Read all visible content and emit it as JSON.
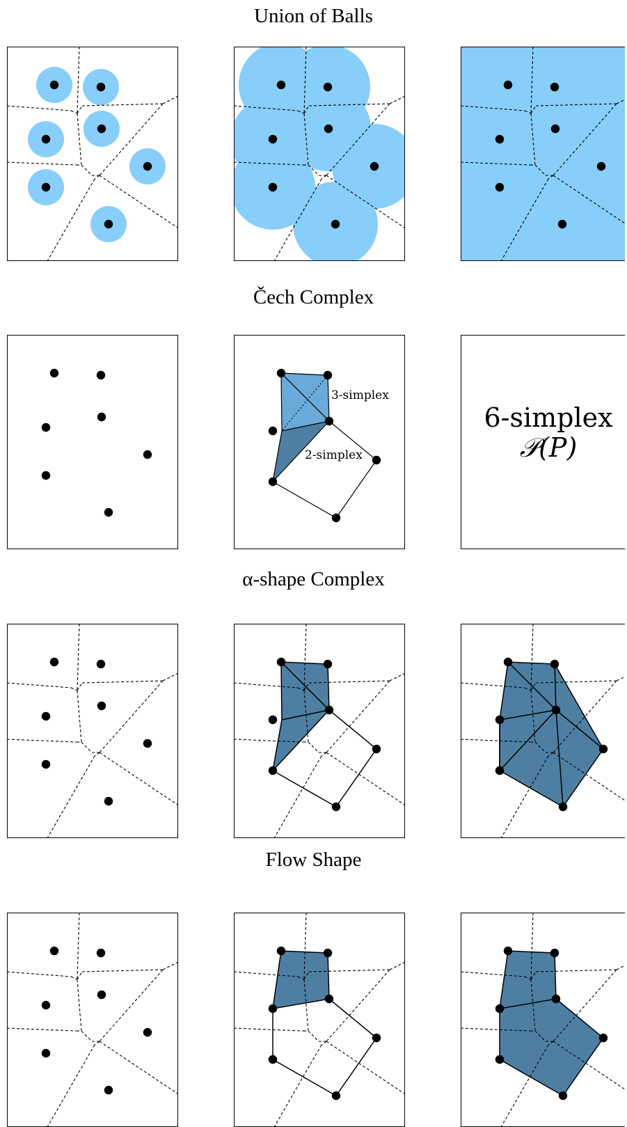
{
  "sections": [
    {
      "id": "union-of-balls",
      "title": "Union of Balls"
    },
    {
      "id": "cech-complex",
      "title": "Čech Complex"
    },
    {
      "id": "alpha-shape-complex",
      "title": "α-shape Complex"
    },
    {
      "id": "flow-shape",
      "title": "Flow Shape"
    }
  ],
  "annotations": {
    "three_simplex": "3-simplex",
    "two_simplex": "2-simplex",
    "six_simplex": "6-simplex",
    "power_set": "𝒫(P)"
  },
  "colors": {
    "ball": "#87cefa",
    "simplex_light": "#6aaad9",
    "simplex_dark": "#4e7fa3",
    "stroke": "#000000"
  }
}
